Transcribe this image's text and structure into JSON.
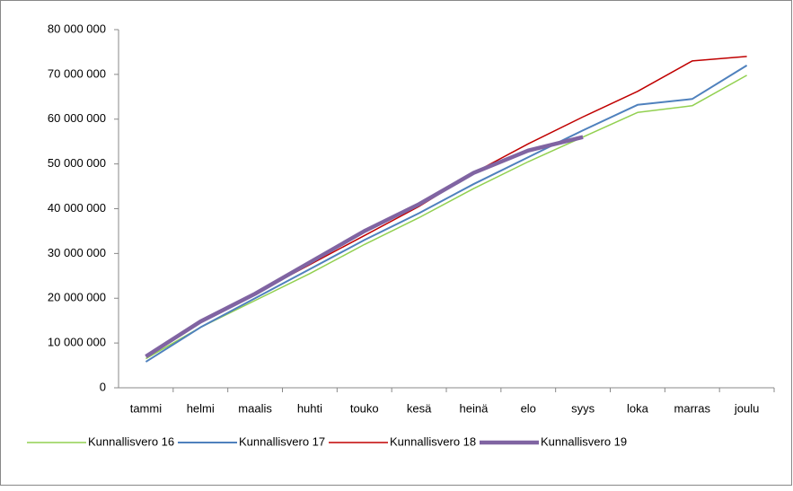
{
  "chart_data": {
    "type": "line",
    "categories": [
      "tammi",
      "helmi",
      "maalis",
      "huhti",
      "touko",
      "kesä",
      "heinä",
      "elo",
      "syys",
      "loka",
      "marras",
      "joulu"
    ],
    "series": [
      {
        "name": "Kunnallisvero 16",
        "color": "#92d050",
        "width": 1.5,
        "values": [
          6500000,
          13500000,
          19500000,
          25500000,
          32000000,
          38000000,
          44500000,
          50500000,
          56000000,
          61500000,
          63000000,
          69800000
        ]
      },
      {
        "name": "Kunnallisvero 17",
        "color": "#4f81bd",
        "width": 2,
        "values": [
          5800000,
          13500000,
          20000000,
          26500000,
          33000000,
          39000000,
          45500000,
          51500000,
          57500000,
          63200000,
          64500000,
          72000000
        ]
      },
      {
        "name": "Kunnallisvero 18",
        "color": "#c00000",
        "width": 1.5,
        "values": [
          7000000,
          15000000,
          21000000,
          27500000,
          34000000,
          40500000,
          48000000,
          54500000,
          60500000,
          66200000,
          73000000,
          74000000
        ]
      },
      {
        "name": "Kunnallisvero 19",
        "color": "#8064a2",
        "width": 4.5,
        "values": [
          7000000,
          14800000,
          21000000,
          28000000,
          35000000,
          41000000,
          48000000,
          53000000,
          56000000,
          null,
          null,
          null
        ]
      }
    ],
    "ylim": [
      0,
      80000000
    ],
    "yticks": [
      0,
      {
        "value": 10000000,
        "label": "10 000 000"
      },
      {
        "value": 20000000,
        "label": "20 000 000"
      },
      {
        "value": 30000000,
        "label": "30 000 000"
      },
      {
        "value": 40000000,
        "label": "40 000 000"
      },
      {
        "value": 50000000,
        "label": "50 000 000"
      },
      {
        "value": 60000000,
        "label": "60 000 000"
      },
      {
        "value": 70000000,
        "label": "70 000 000"
      },
      {
        "value": 80000000,
        "label": "80 000 000"
      }
    ],
    "legend": "bottom"
  }
}
